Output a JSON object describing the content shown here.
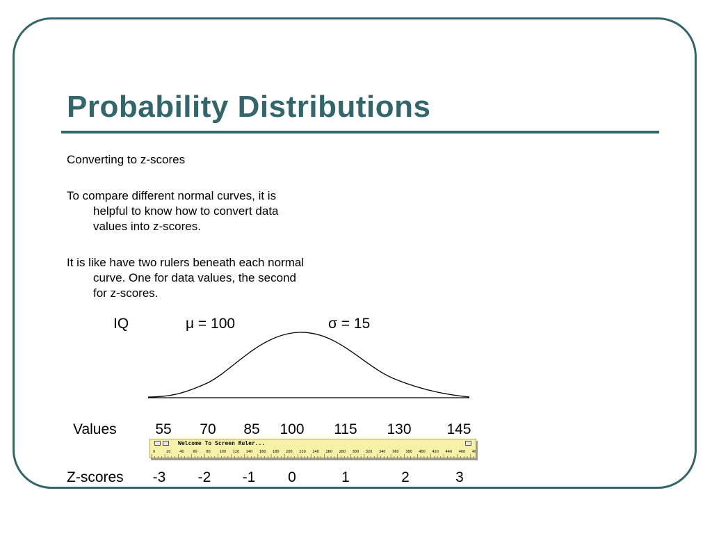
{
  "slide": {
    "title": "Probability Distributions",
    "paragraphs": [
      {
        "first": "Converting to z-scores",
        "rest": []
      },
      {
        "first": "To compare different normal curves, it is",
        "rest": [
          "helpful to know how to convert data",
          "values into z-scores."
        ]
      },
      {
        "first": "It is like have two rulers beneath each normal",
        "rest": [
          "curve.  One for data values, the second",
          "for z-scores."
        ]
      }
    ]
  },
  "figure": {
    "distribution_label": "IQ",
    "mu_text": "μ = 100",
    "sigma_text": "σ = 15",
    "values_label": "Values",
    "values": [
      "55",
      "70",
      "85",
      "100",
      "115",
      "130",
      "145"
    ],
    "zscores_label": "Z-scores",
    "zscores": [
      "-3",
      "-2",
      "-1",
      "0",
      "1",
      "2",
      "3"
    ]
  },
  "screen_ruler": {
    "title": "Welcome To Screen Ruler...",
    "scale": [
      "0",
      "20",
      "40",
      "60",
      "80",
      "100",
      "120",
      "140",
      "160",
      "180",
      "200",
      "220",
      "240",
      "260",
      "280",
      "300",
      "320",
      "340",
      "360",
      "380",
      "400",
      "420",
      "440",
      "460",
      "48"
    ]
  }
}
